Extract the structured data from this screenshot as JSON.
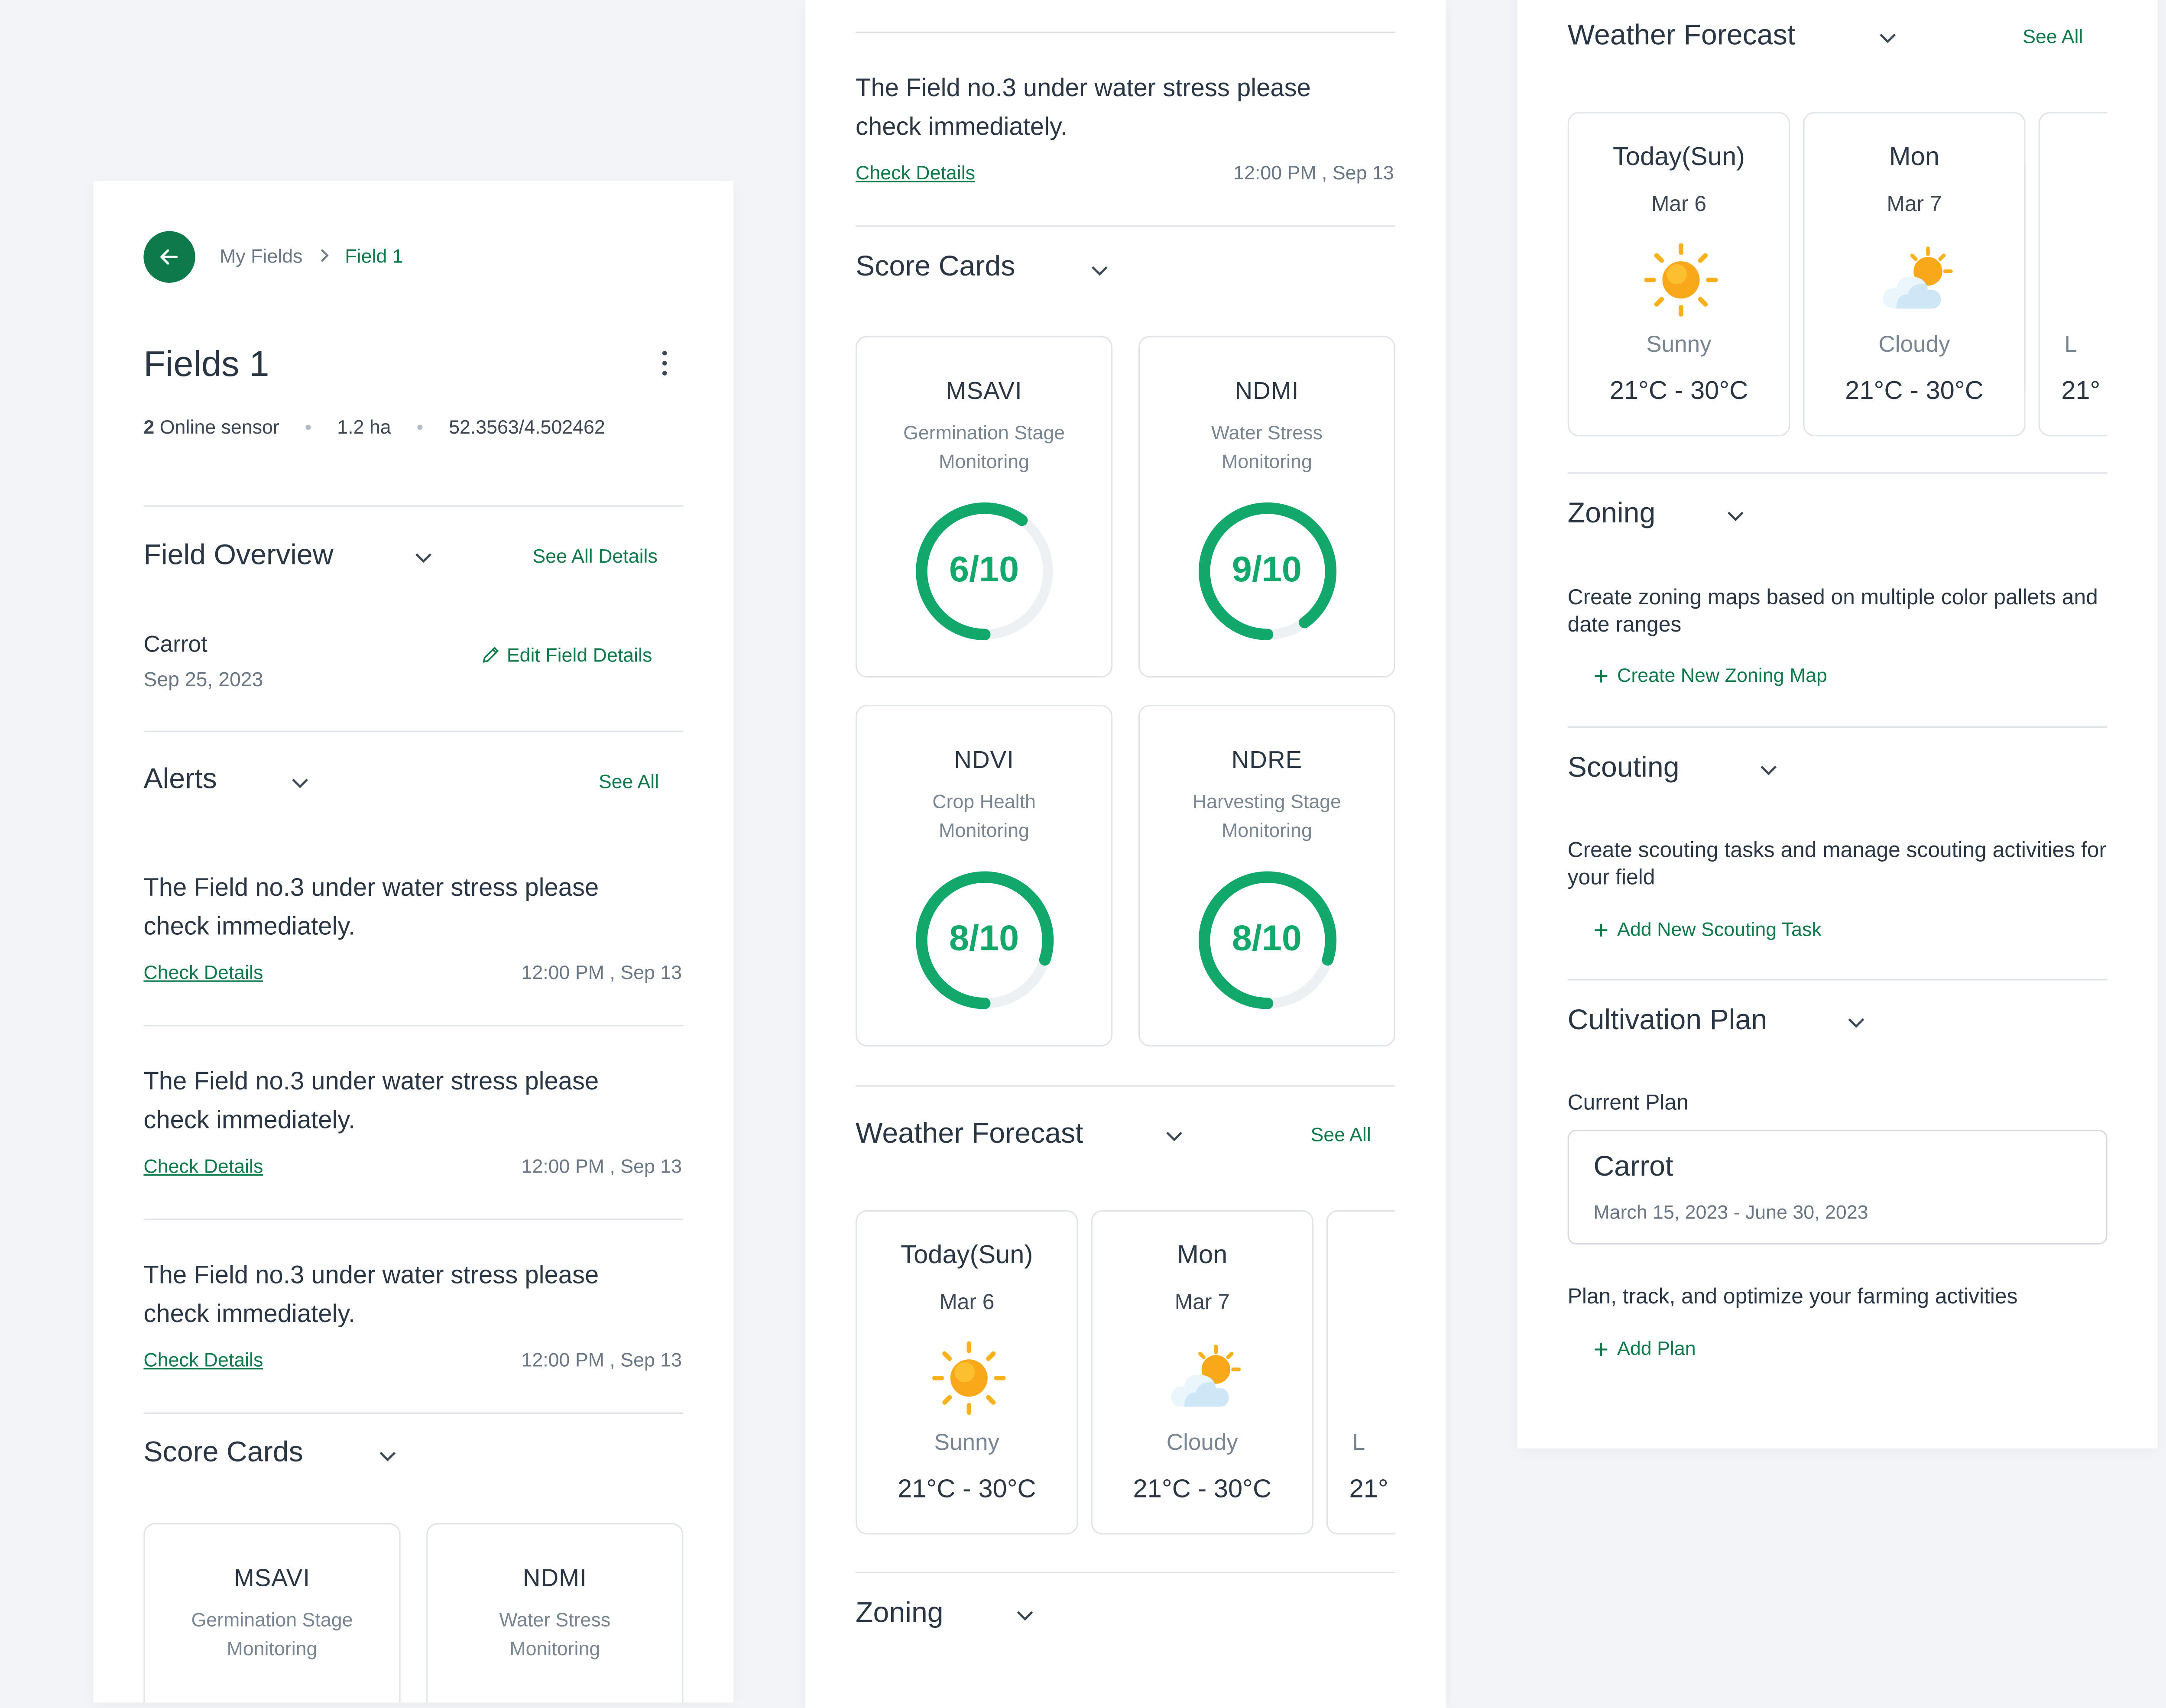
{
  "breadcrumb": {
    "parent": "My Fields",
    "current": "Field 1"
  },
  "field": {
    "title": "Fields 1",
    "sensor_count": "2",
    "sensor_label": "Online sensor",
    "area": "1.2 ha",
    "coords": "52.3563/4.502462"
  },
  "overview": {
    "title": "Field Overview",
    "see_all": "See All Details",
    "crop": "Carrot",
    "date": "Sep 25, 2023",
    "edit": "Edit Field Details"
  },
  "alerts": {
    "title": "Alerts",
    "see_all": "See All",
    "items": [
      {
        "text": "The Field no.3 under water stress please check immediately.",
        "link": "Check Details",
        "time": "12:00 PM , Sep 13"
      },
      {
        "text": "The Field no.3 under water stress please check immediately.",
        "link": "Check Details",
        "time": "12:00 PM , Sep 13"
      },
      {
        "text": "The Field no.3 under water stress please check immediately.",
        "link": "Check Details",
        "time": "12:00 PM , Sep 13"
      },
      {
        "text": "The Field no.3 under water stress please check immediately.",
        "link": "Check Details",
        "time": "12:00 PM , Sep 13"
      }
    ]
  },
  "score_cards": {
    "title": "Score Cards",
    "items": [
      {
        "name": "MSAVI",
        "line1": "Germination Stage",
        "line2": "Monitoring",
        "score": 6,
        "max": 10,
        "label": "6/10"
      },
      {
        "name": "NDMI",
        "line1": "Water Stress",
        "line2": "Monitoring",
        "score": 9,
        "max": 10,
        "label": "9/10"
      },
      {
        "name": "NDVI",
        "line1": "Crop Health",
        "line2": "Monitoring",
        "score": 8,
        "max": 10,
        "label": "8/10"
      },
      {
        "name": "NDRE",
        "line1": "Harvesting Stage",
        "line2": "Monitoring",
        "score": 8,
        "max": 10,
        "label": "8/10"
      }
    ]
  },
  "weather": {
    "title": "Weather Forecast",
    "see_all": "See All",
    "days": [
      {
        "day": "Today(Sun)",
        "date": "Mar 6",
        "condition": "Sunny",
        "icon": "sun-icon",
        "temp": "21°C - 30°C"
      },
      {
        "day": "Mon",
        "date": "Mar 7",
        "condition": "Cloudy",
        "icon": "partly-cloudy-icon",
        "temp": "21°C - 30°C"
      },
      {
        "day": "",
        "date": "",
        "condition": "L",
        "icon": "",
        "temp": "21°"
      }
    ]
  },
  "zoning": {
    "title": "Zoning",
    "description": "Create zoning maps based on multiple color pallets and date ranges",
    "action": "Create New Zoning Map"
  },
  "scouting": {
    "title": "Scouting",
    "description": "Create scouting tasks and manage scouting activities for your field",
    "action": "Add New Scouting Task"
  },
  "cultivation": {
    "title": "Cultivation Plan",
    "current_label": "Current Plan",
    "plan_name": "Carrot",
    "plan_dates": "March 15, 2023 - June 30, 2023",
    "description": "Plan, track, and optimize your farming activities",
    "action": "Add Plan"
  },
  "colors": {
    "brand": "#0e7a4b",
    "ring": "#13a86b",
    "ring_track": "#eef1f4"
  }
}
